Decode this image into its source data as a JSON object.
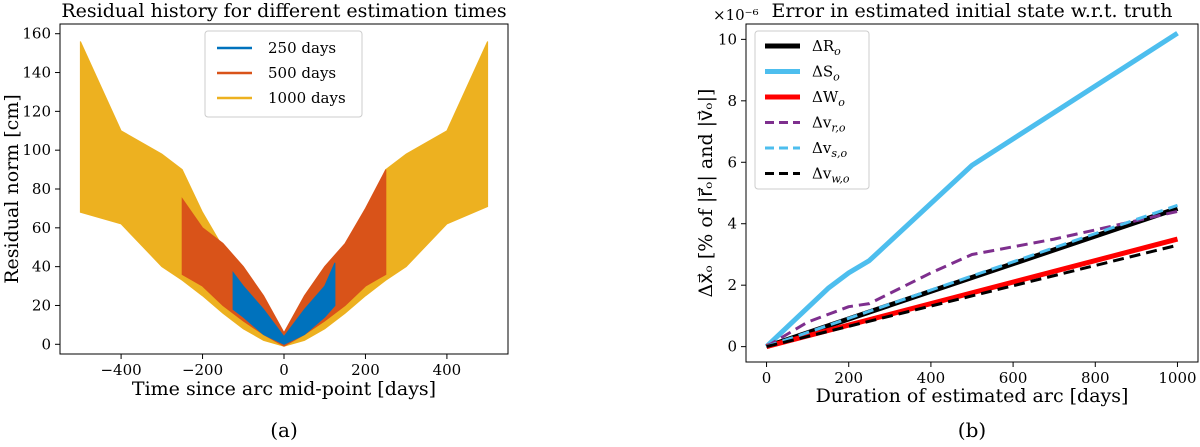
{
  "panel_a": {
    "caption": "(a)"
  },
  "panel_b": {
    "caption": "(b)",
    "exponent_label": "×10⁻⁶"
  },
  "chart_data": [
    {
      "type": "area",
      "title": "Residual history for different estimation times",
      "xlabel": "Time since arc mid-point [days]",
      "ylabel": "Residual norm [cm]",
      "xlim": [
        -550,
        550
      ],
      "ylim": [
        -5,
        165
      ],
      "xticks": [
        -400,
        -200,
        0,
        200,
        400
      ],
      "yticks": [
        0,
        20,
        40,
        60,
        80,
        100,
        120,
        140,
        160
      ],
      "legend_position": "top-center",
      "series": [
        {
          "name": "1000 days",
          "color": "#EDB120",
          "x": [
            -500,
            -400,
            -300,
            -250,
            -200,
            -150,
            -100,
            -50,
            0,
            50,
            100,
            150,
            200,
            250,
            300,
            400,
            500
          ],
          "upper": [
            156,
            110,
            98,
            90,
            68,
            50,
            35,
            20,
            3,
            20,
            35,
            50,
            68,
            90,
            98,
            110,
            156
          ],
          "lower": [
            68,
            62,
            40,
            33,
            25,
            16,
            8,
            2,
            -1,
            2,
            8,
            16,
            25,
            33,
            40,
            62,
            71
          ]
        },
        {
          "name": "500 days",
          "color": "#D95319",
          "x": [
            -250,
            -200,
            -150,
            -100,
            -50,
            0,
            50,
            100,
            150,
            200,
            250
          ],
          "upper": [
            75,
            60,
            52,
            40,
            25,
            6,
            25,
            40,
            52,
            70,
            90
          ],
          "lower": [
            36,
            30,
            20,
            12,
            5,
            -1,
            5,
            12,
            20,
            30,
            36
          ]
        },
        {
          "name": "250 days",
          "color": "#0072BD",
          "x": [
            -125,
            -100,
            -50,
            0,
            50,
            100,
            125
          ],
          "upper": [
            37,
            30,
            18,
            4,
            18,
            30,
            42
          ],
          "lower": [
            18,
            14,
            5,
            0,
            5,
            14,
            20
          ]
        }
      ]
    },
    {
      "type": "line",
      "title": "Error in estimated initial state w.r.t. truth",
      "xlabel": "Duration of estimated arc [days]",
      "ylabel": "Δx⃗ₒ [% of |r⃗ₒ| and |v⃗ₒ|]",
      "xlim": [
        -50,
        1050
      ],
      "ylim": [
        -0.5,
        10.5
      ],
      "xticks": [
        0,
        200,
        400,
        600,
        800,
        1000
      ],
      "yticks": [
        0,
        2,
        4,
        6,
        8,
        10
      ],
      "y_scale_factor": 1e-06,
      "legend_position": "top-left",
      "series": [
        {
          "name": "ΔR_o",
          "color": "#000000",
          "style": "solid",
          "x": [
            0,
            1000
          ],
          "y": [
            0,
            4.5
          ]
        },
        {
          "name": "ΔS_o",
          "color": "#4DBEEE",
          "style": "solid",
          "x": [
            0,
            150,
            200,
            250,
            500,
            1000
          ],
          "y": [
            0,
            1.9,
            2.4,
            2.8,
            5.9,
            10.2
          ]
        },
        {
          "name": "ΔW_o",
          "color": "#FF0000",
          "style": "solid",
          "x": [
            0,
            1000
          ],
          "y": [
            0,
            3.5
          ]
        },
        {
          "name": "Δv_r,o",
          "color": "#7E2F8E",
          "style": "dashed",
          "x": [
            0,
            100,
            200,
            250,
            400,
            500,
            700,
            800,
            900,
            1000
          ],
          "y": [
            0,
            0.8,
            1.3,
            1.4,
            2.4,
            3.0,
            3.5,
            3.8,
            4.1,
            4.4
          ]
        },
        {
          "name": "Δv_s,o",
          "color": "#4DBEEE",
          "style": "dashed",
          "x": [
            0,
            1000
          ],
          "y": [
            0,
            4.6
          ]
        },
        {
          "name": "Δv_w,o",
          "color": "#000000",
          "style": "dashed",
          "x": [
            0,
            1000
          ],
          "y": [
            0,
            3.3
          ]
        }
      ]
    }
  ]
}
